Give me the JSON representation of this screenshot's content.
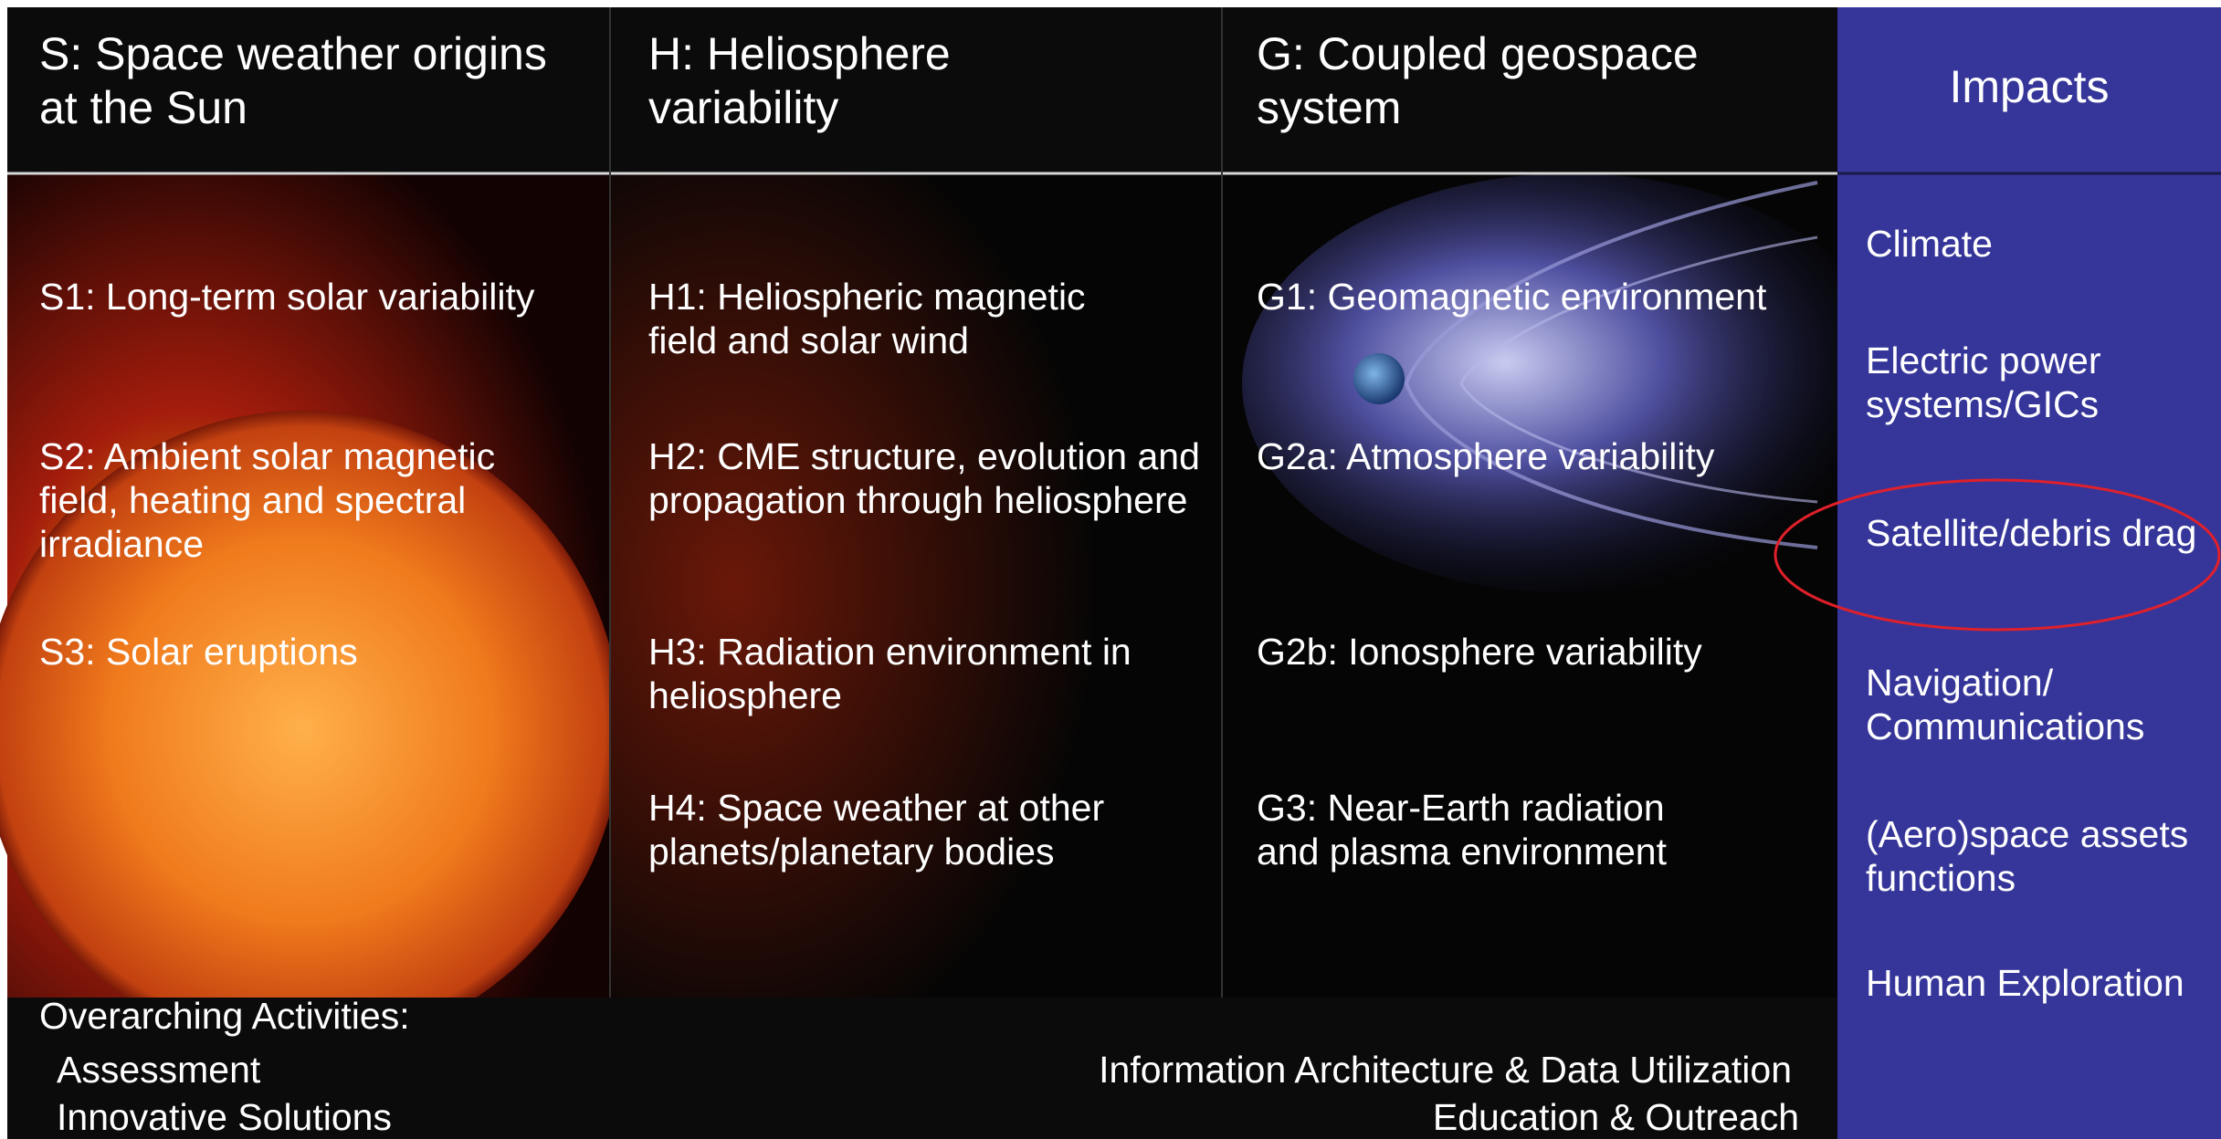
{
  "columns": [
    {
      "title": "S: Space weather origins at the Sun",
      "items": [
        "S1: Long-term solar variability",
        "S2: Ambient solar magnetic field, heating and spectral irradiance",
        "S3: Solar eruptions"
      ]
    },
    {
      "title": "H: Heliosphere variability",
      "items": [
        "H1: Heliospheric magnetic field and solar wind",
        "H2: CME structure, evolution and propagation through heliosphere",
        "H3: Radiation environment in heliosphere",
        "H4: Space weather at other planets/planetary bodies"
      ]
    },
    {
      "title": "G: Coupled geospace system",
      "items": [
        "G1: Geomagnetic environment",
        "G2a: Atmosphere variability",
        "G2b: Ionosphere variability",
        "G3: Near-Earth radiation and plasma environment"
      ]
    }
  ],
  "impacts": {
    "title": "Impacts",
    "items": [
      "Climate",
      "Electric power systems/GICs",
      "Satellite/debris drag",
      "Navigation/ Communications",
      "(Aero)space assets functions",
      "Human Exploration"
    ]
  },
  "overarching": {
    "title": "Overarching Activities:",
    "left": [
      "Assessment",
      "Innovative Solutions"
    ],
    "right": [
      "Information Architecture & Data Utilization",
      "Education & Outreach"
    ]
  }
}
